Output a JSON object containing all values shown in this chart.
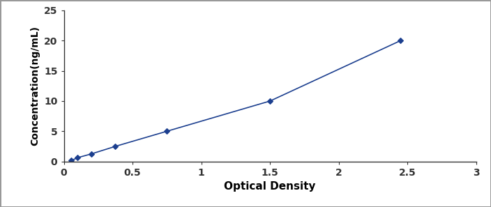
{
  "x": [
    0.055,
    0.1,
    0.2,
    0.375,
    0.75,
    1.5,
    2.45
  ],
  "y": [
    0.156,
    0.625,
    1.25,
    2.5,
    5.0,
    10.0,
    20.0
  ],
  "line_color": "#1C3F8F",
  "marker": "D",
  "marker_size": 4.5,
  "marker_facecolor": "#1C3F8F",
  "xlabel": "Optical Density",
  "ylabel": "Concentration(ng/mL)",
  "xlim": [
    0,
    3
  ],
  "ylim": [
    0,
    25
  ],
  "xticks": [
    0,
    0.5,
    1,
    1.5,
    2,
    2.5,
    3
  ],
  "yticks": [
    0,
    5,
    10,
    15,
    20,
    25
  ],
  "xlabel_fontsize": 11,
  "ylabel_fontsize": 10,
  "tick_fontsize": 10,
  "background_color": "#ffffff",
  "figure_background": "#ffffff",
  "border_color": "#aaaaaa"
}
